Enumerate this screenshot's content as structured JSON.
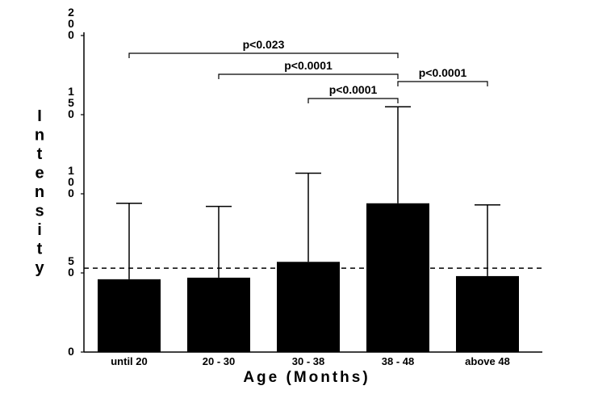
{
  "chart_data": {
    "type": "bar",
    "title": "",
    "xlabel": "Age (Months)",
    "ylabel": "Intensity",
    "ylim": [
      0,
      200
    ],
    "yticks": [
      0,
      50,
      100,
      150,
      200
    ],
    "categories": [
      "until 20",
      "20 - 30",
      "30 - 38",
      "38 - 48",
      "above 48"
    ],
    "values": [
      46,
      47,
      57,
      94,
      48
    ],
    "error_upper": [
      94,
      92,
      113,
      155,
      93
    ],
    "reference_line": 53,
    "significance": [
      {
        "from": "until 20",
        "to": "38 - 48",
        "label": "p<0.023"
      },
      {
        "from": "20 - 30",
        "to": "38 - 48",
        "label": "p<0.0001"
      },
      {
        "from": "30 - 38",
        "to": "38 - 48",
        "label": "p<0.0001"
      },
      {
        "from": "38 - 48",
        "to": "above 48",
        "label": "p<0.0001"
      }
    ],
    "colors": {
      "bar": "#000000",
      "axis": "#000000"
    }
  }
}
